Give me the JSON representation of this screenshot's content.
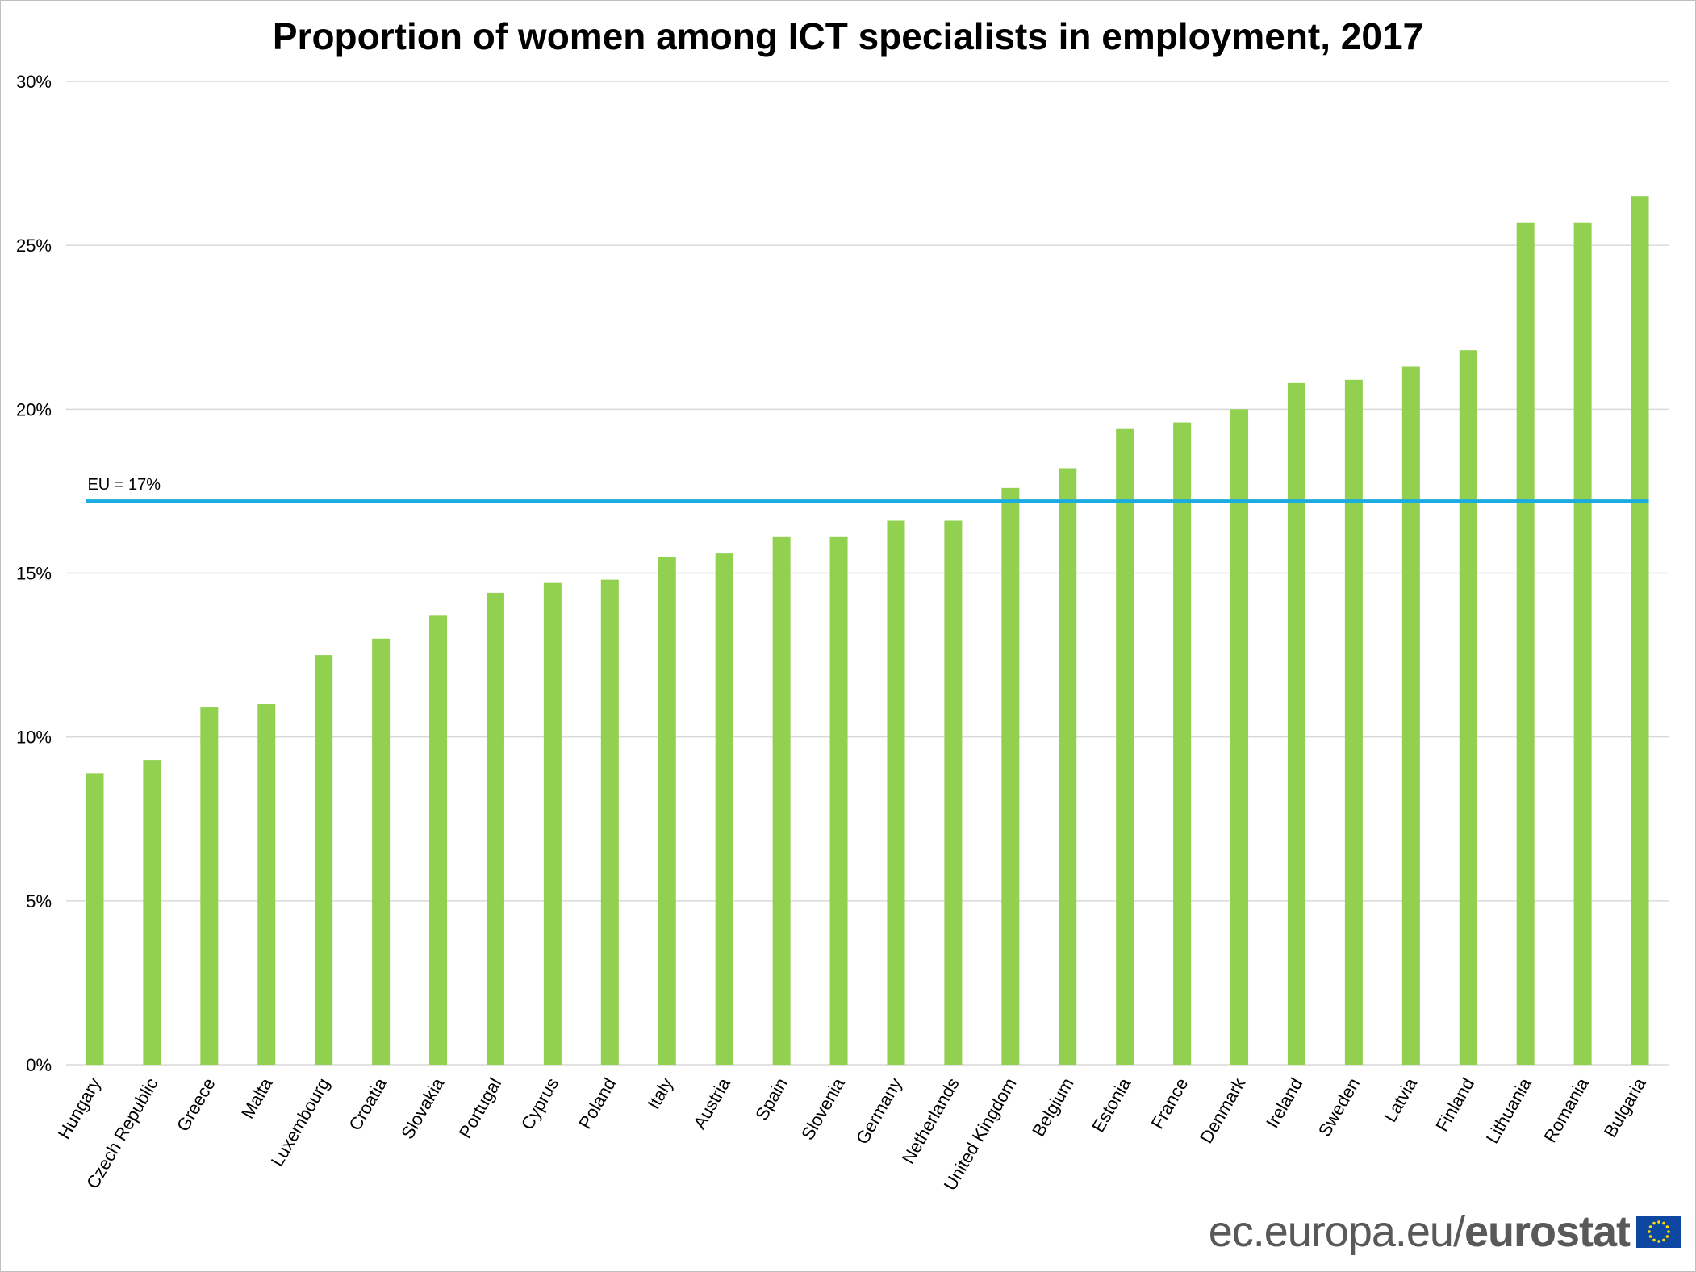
{
  "chart_data": {
    "type": "bar",
    "title": "Proportion of women among ICT specialists in employment, 2017",
    "categories": [
      "Hungary",
      "Czech Republic",
      "Greece",
      "Malta",
      "Luxembourg",
      "Croatia",
      "Slovakia",
      "Portugal",
      "Cyprus",
      "Poland",
      "Italy",
      "Austria",
      "Spain",
      "Slovenia",
      "Germany",
      "Netherlands",
      "United Kingdom",
      "Belgium",
      "Estonia",
      "France",
      "Denmark",
      "Ireland",
      "Sweden",
      "Latvia",
      "Finland",
      "Lithuania",
      "Romania",
      "Bulgaria"
    ],
    "values": [
      8.9,
      9.3,
      10.9,
      11.0,
      12.5,
      13.0,
      13.7,
      14.4,
      14.7,
      14.8,
      15.5,
      15.6,
      16.1,
      16.1,
      16.6,
      16.6,
      17.6,
      18.2,
      19.4,
      19.6,
      20.0,
      20.8,
      20.9,
      21.3,
      21.8,
      25.7,
      25.7,
      26.5
    ],
    "ylim": [
      0,
      30
    ],
    "yticks": [
      0,
      5,
      10,
      15,
      20,
      25,
      30
    ],
    "ytick_labels": [
      "0%",
      "5%",
      "10%",
      "15%",
      "20%",
      "25%",
      "30%"
    ],
    "grid": true,
    "bar_color": "#92d050",
    "reference_line": {
      "label": "EU = 17%",
      "value": 17.2,
      "color": "#1aabe0"
    }
  },
  "footer": {
    "site": "ec.europa.eu/",
    "brand": "eurostat",
    "flag_icon": "eu-flag-icon"
  }
}
